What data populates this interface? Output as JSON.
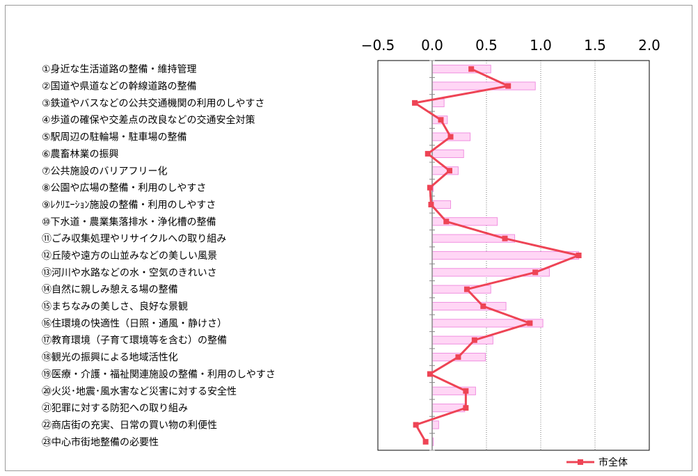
{
  "chart_data": {
    "type": "bar",
    "orientation": "horizontal",
    "title": "",
    "xlabel": "",
    "ylabel": "",
    "xlim": [
      -0.5,
      2.0
    ],
    "x_ticks": [
      -0.5,
      0.0,
      0.5,
      1.0,
      1.5,
      2.0
    ],
    "x_tick_labels": [
      "−0.5",
      "0.0",
      "0.5",
      "1.0",
      "1.5",
      "2.0"
    ],
    "x_axis_position": "top",
    "grid": "vertical dotted at 0.5, 1.0, 1.5",
    "legend_position": "bottom-right",
    "categories": [
      "①身近な生活道路の整備・維持管理",
      "②国道や県道などの幹線道路の整備",
      "③鉄道やバスなどの公共交通機関の利用のしやすさ",
      "④歩道の確保や交差点の改良などの交通安全対策",
      "⑤駅周辺の駐輪場・駐車場の整備",
      "⑥農畜林業の振興",
      "⑦公共施設のバリアフリー化",
      "⑧公園や広場の整備・利用のしやすさ",
      "⑨ﾚｸﾘｴｰｼｮﾝ施設の整備・利用のしやすさ",
      "⑩下水道・農業集落排水・浄化槽の整備",
      "⑪ごみ収集処理やリサイクルへの取り組み",
      "⑫丘陵や遠方の山並みなどの美しい風景",
      "⑬河川や水路などの水・空気のきれいさ",
      "⑭自然に親しみ憩える場の整備",
      "⑮まちなみの美しさ、良好な景観",
      "⑯住環境の快適性（日照・通風・静けさ）",
      "⑰教育環境（子育て環境等を含む）の整備",
      "⑱観光の振興による地域活性化",
      "⑲医療・介護・福祉関連施設の整備・利用のしやすさ",
      "⑳火災･地震･風水害など災害に対する安全性",
      "㉑犯罪に対する防犯への取り組み",
      "㉒商店街の充実、日常の買い物の利便性",
      "㉓中心市街地整備の必要性"
    ],
    "series": [
      {
        "type": "bar",
        "color": "#ffd6f5",
        "stroke": "#f090e0",
        "values": [
          0.54,
          0.95,
          0.11,
          0.14,
          0.35,
          0.29,
          0.24,
          0.01,
          0.17,
          0.6,
          0.76,
          1.35,
          1.08,
          0.54,
          0.68,
          1.02,
          0.56,
          0.49,
          0.0,
          0.4,
          0.3,
          0.06,
          0.01
        ]
      },
      {
        "type": "line",
        "name": "市全体",
        "color": "#ee4455",
        "values": [
          0.36,
          0.7,
          -0.16,
          0.08,
          0.17,
          -0.04,
          0.16,
          -0.02,
          -0.01,
          0.13,
          0.67,
          1.35,
          0.95,
          0.32,
          0.47,
          0.9,
          0.39,
          0.24,
          -0.02,
          0.31,
          0.31,
          -0.15,
          -0.06
        ]
      }
    ]
  }
}
